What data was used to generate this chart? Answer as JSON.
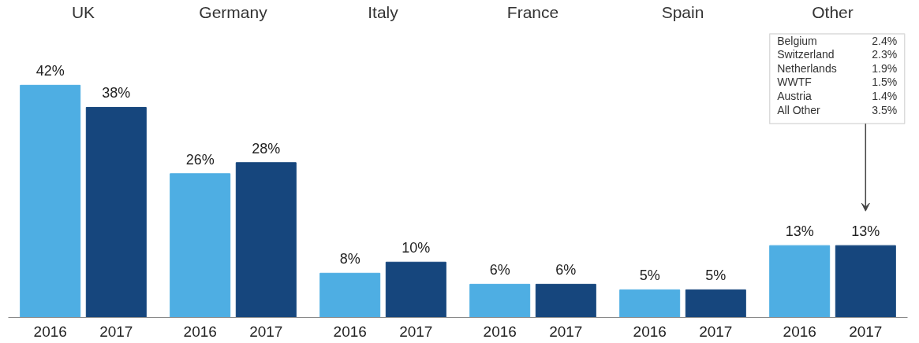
{
  "chart_data": {
    "type": "bar",
    "categories": [
      "UK",
      "Germany",
      "Italy",
      "France",
      "Spain",
      "Other"
    ],
    "series": [
      {
        "name": "2016",
        "color": "#4eaee3",
        "values": [
          42,
          26,
          8,
          6,
          5,
          13
        ],
        "value_labels": [
          "42%",
          "26%",
          "8%",
          "6%",
          "5%",
          "13%"
        ]
      },
      {
        "name": "2017",
        "color": "#16467d",
        "values": [
          38,
          28,
          10,
          6,
          5,
          13
        ],
        "value_labels": [
          "38%",
          "28%",
          "10%",
          "6%",
          "5%",
          "13%"
        ]
      }
    ],
    "grid": false,
    "annotations": [
      "Belgium",
      "2.4%",
      "Switzerland",
      "2.3%",
      "Netherlands",
      "1.9%",
      "WWTF",
      "1.5%",
      "Austria",
      "1.4%",
      "All Other",
      "3.5%"
    ]
  }
}
